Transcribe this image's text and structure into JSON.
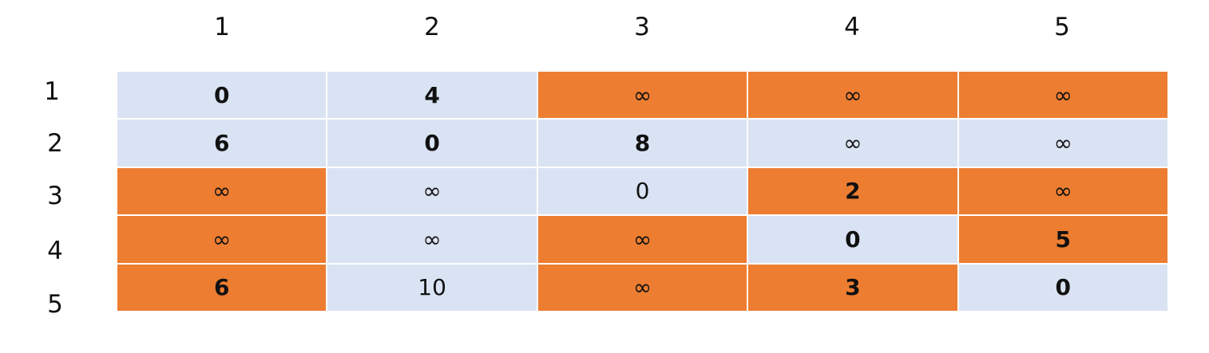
{
  "column_headers": [
    "1",
    "2",
    "3",
    "4",
    "5"
  ],
  "row_headers": [
    "1",
    "2",
    "3",
    "4",
    "5"
  ],
  "colors": {
    "plain": "#dae3f3",
    "highlight": "#ed7d31"
  },
  "matrix": [
    [
      {
        "value": "0",
        "highlight": false,
        "weight": "bold"
      },
      {
        "value": "4",
        "highlight": false,
        "weight": "bold"
      },
      {
        "value": "∞",
        "highlight": true,
        "weight": "light"
      },
      {
        "value": "∞",
        "highlight": true,
        "weight": "light"
      },
      {
        "value": "∞",
        "highlight": true,
        "weight": "light"
      }
    ],
    [
      {
        "value": "6",
        "highlight": false,
        "weight": "bold"
      },
      {
        "value": "0",
        "highlight": false,
        "weight": "bold"
      },
      {
        "value": "8",
        "highlight": false,
        "weight": "bold"
      },
      {
        "value": "∞",
        "highlight": false,
        "weight": "light"
      },
      {
        "value": "∞",
        "highlight": false,
        "weight": "light"
      }
    ],
    [
      {
        "value": "∞",
        "highlight": true,
        "weight": "light"
      },
      {
        "value": "∞",
        "highlight": false,
        "weight": "light"
      },
      {
        "value": "0",
        "highlight": false,
        "weight": "light"
      },
      {
        "value": "2",
        "highlight": true,
        "weight": "bold"
      },
      {
        "value": "∞",
        "highlight": true,
        "weight": "light"
      }
    ],
    [
      {
        "value": "∞",
        "highlight": true,
        "weight": "light"
      },
      {
        "value": "∞",
        "highlight": false,
        "weight": "light"
      },
      {
        "value": "∞",
        "highlight": true,
        "weight": "light"
      },
      {
        "value": "0",
        "highlight": false,
        "weight": "bold"
      },
      {
        "value": "5",
        "highlight": true,
        "weight": "bold"
      }
    ],
    [
      {
        "value": "6",
        "highlight": true,
        "weight": "bold"
      },
      {
        "value": "10",
        "highlight": false,
        "weight": "light"
      },
      {
        "value": "∞",
        "highlight": true,
        "weight": "light"
      },
      {
        "value": "3",
        "highlight": true,
        "weight": "bold"
      },
      {
        "value": "0",
        "highlight": false,
        "weight": "bold"
      }
    ]
  ]
}
